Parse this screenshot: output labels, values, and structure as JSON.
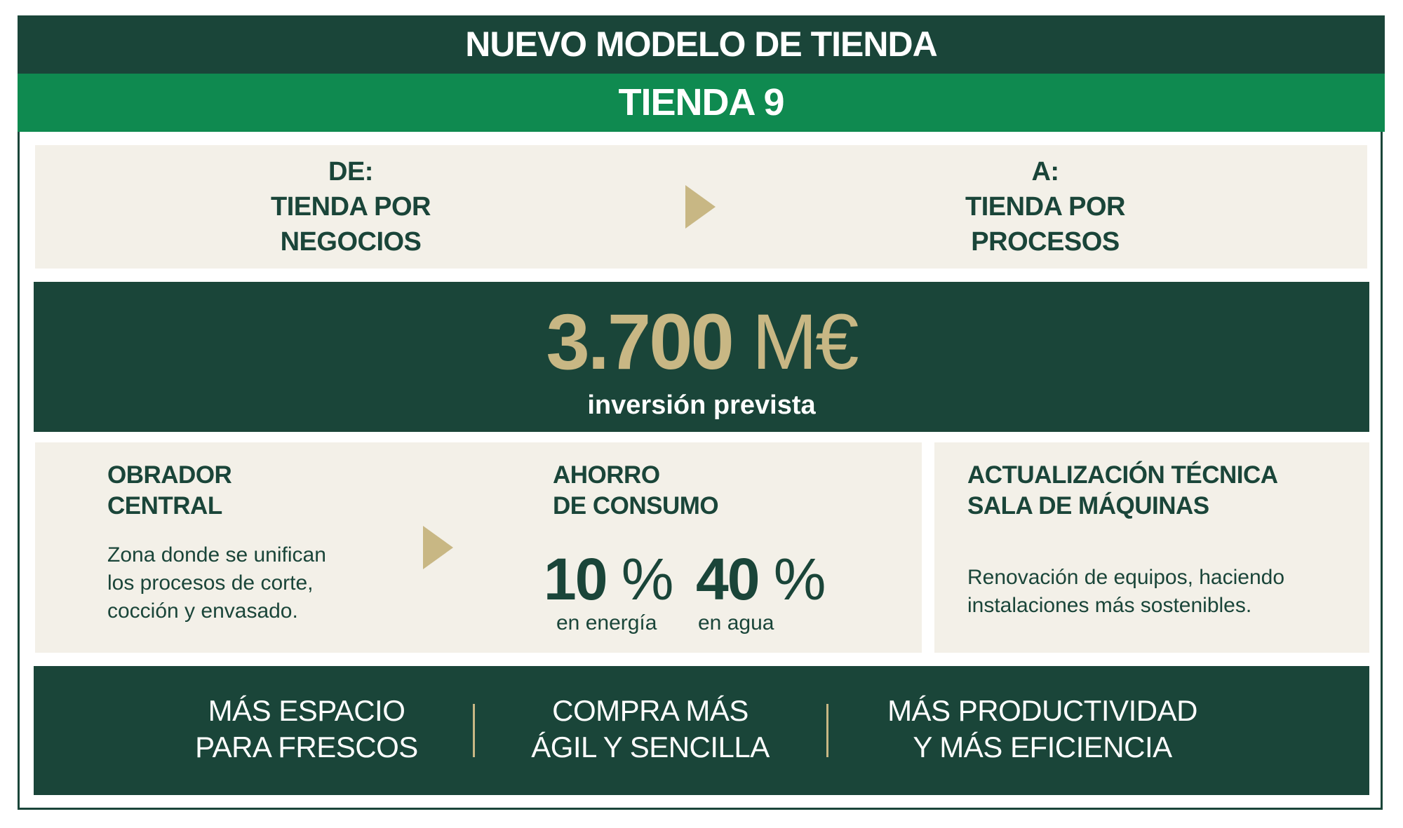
{
  "header": {
    "title": "NUEVO MODELO DE TIENDA",
    "subtitle": "TIENDA 9"
  },
  "transition": {
    "from_label": "DE:",
    "from_lines": [
      "TIENDA POR",
      "NEGOCIOS"
    ],
    "to_label": "A:",
    "to_lines": [
      "TIENDA POR",
      "PROCESOS"
    ],
    "arrow_icon": "triangle-right-icon"
  },
  "investment": {
    "amount": "3.700",
    "unit": "M€",
    "label": "inversión prevista"
  },
  "obrador": {
    "title_lines": [
      "OBRADOR",
      "CENTRAL"
    ],
    "desc_lines": [
      "Zona donde se unifican",
      "los procesos de corte,",
      "cocción y envasado."
    ]
  },
  "ahorro": {
    "title_lines": [
      "AHORRO",
      "DE CONSUMO"
    ],
    "stats": [
      {
        "value": "10",
        "unit": "%",
        "label": "en energía"
      },
      {
        "value": "40",
        "unit": "%",
        "label": "en agua"
      }
    ]
  },
  "actualizacion": {
    "title_lines": [
      "ACTUALIZACIÓN TÉCNICA",
      "SALA DE MÁQUINAS"
    ],
    "desc_lines": [
      "Renovación de equipos, haciendo",
      "instalaciones más sostenibles."
    ]
  },
  "benefits": [
    {
      "lines": [
        "MÁS ESPACIO",
        "PARA FRESCOS"
      ]
    },
    {
      "lines": [
        "COMPRA MÁS",
        "ÁGIL Y SENCILLA"
      ]
    },
    {
      "lines": [
        "MÁS PRODUCTIVIDAD",
        "Y MÁS EFICIENCIA"
      ]
    }
  ],
  "colors": {
    "dark_green": "#1a4539",
    "green": "#0f8a50",
    "beige": "#f3f0e8",
    "gold": "#c8b784"
  }
}
